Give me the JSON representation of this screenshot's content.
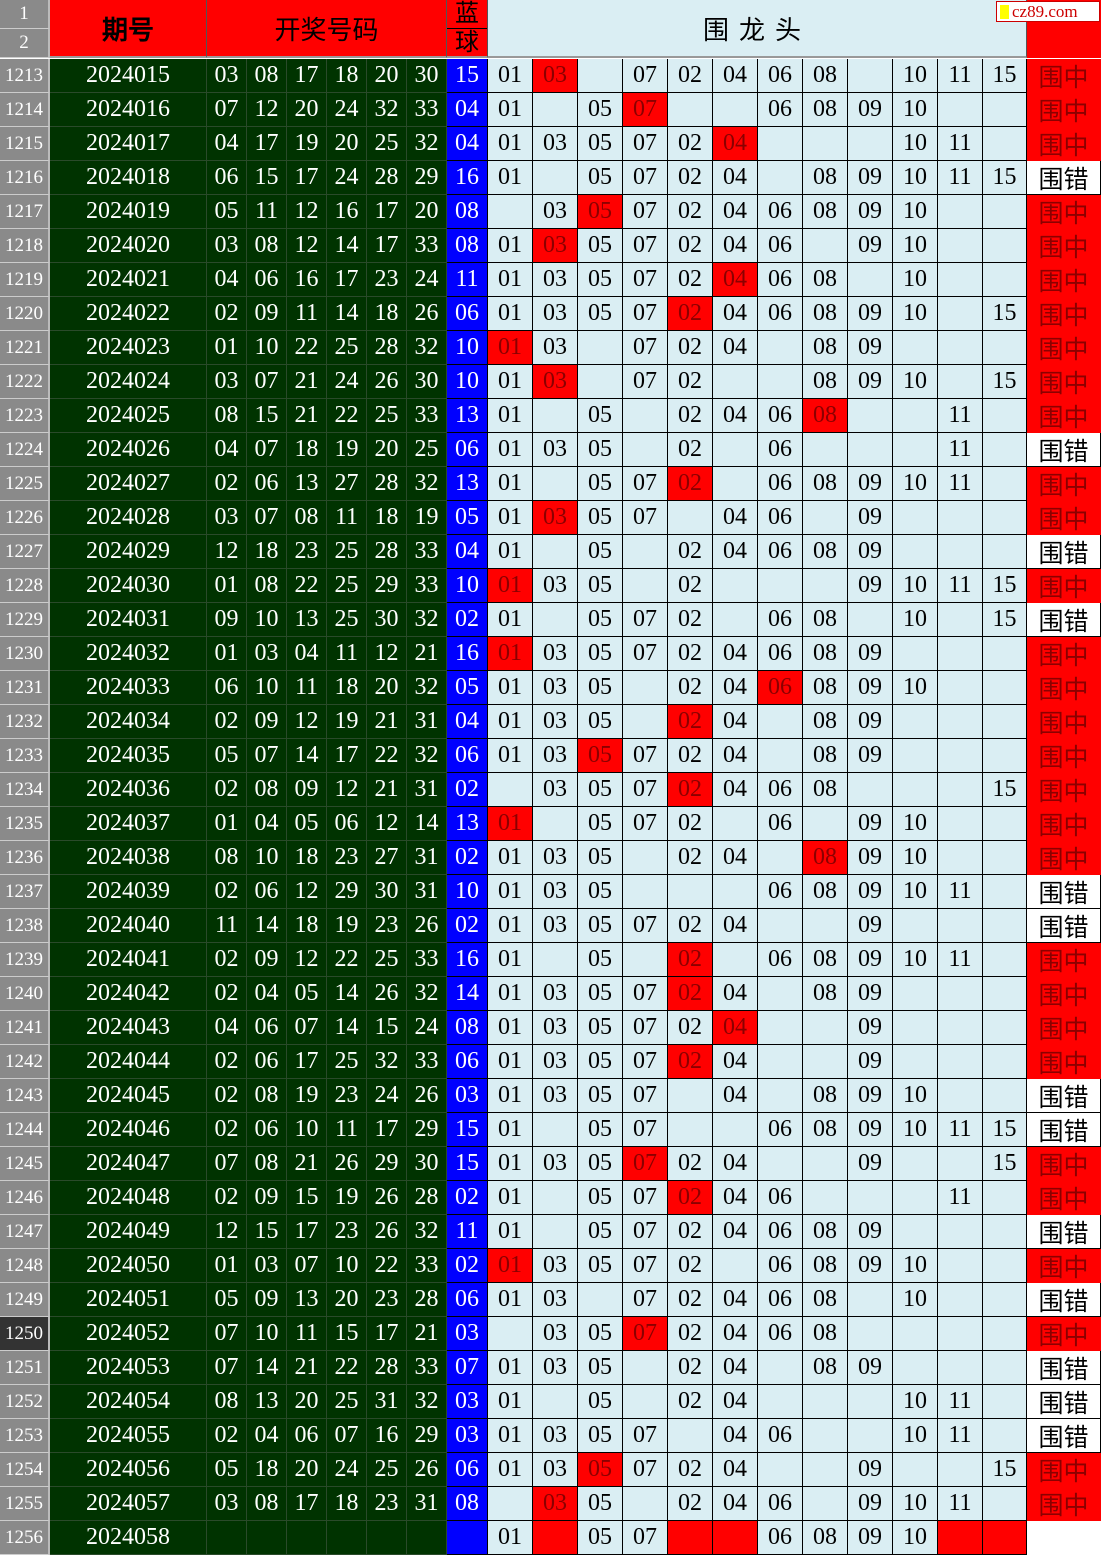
{
  "watermark": "cz89.com",
  "header": {
    "row1": "1",
    "row2": "2",
    "period": "期号",
    "numbers": "开奖号码",
    "blue_top": "蓝",
    "blue_bottom": "球",
    "group": "围龙头"
  },
  "colors": {
    "red": "#ff0000",
    "green": "#003300",
    "blue": "#0000ff",
    "cell": "#daeef3"
  },
  "active_row": "1250",
  "rows": [
    {
      "n": "1213",
      "p": "2024015",
      "nums": [
        "03",
        "08",
        "17",
        "18",
        "20",
        "30"
      ],
      "b": "15",
      "cells": [
        "01",
        "03",
        "",
        "07",
        "02",
        "04",
        "06",
        "08",
        "",
        "10",
        "11",
        "15"
      ],
      "red": [
        1
      ],
      "r": "围中"
    },
    {
      "n": "1214",
      "p": "2024016",
      "nums": [
        "07",
        "12",
        "20",
        "24",
        "32",
        "33"
      ],
      "b": "04",
      "cells": [
        "01",
        "",
        "05",
        "07",
        "",
        "",
        "06",
        "08",
        "09",
        "10",
        "",
        ""
      ],
      "red": [
        3
      ],
      "r": "围中"
    },
    {
      "n": "1215",
      "p": "2024017",
      "nums": [
        "04",
        "17",
        "19",
        "20",
        "25",
        "32"
      ],
      "b": "04",
      "cells": [
        "01",
        "03",
        "05",
        "07",
        "02",
        "04",
        "",
        "",
        "",
        "10",
        "11",
        ""
      ],
      "red": [
        5
      ],
      "r": "围中"
    },
    {
      "n": "1216",
      "p": "2024018",
      "nums": [
        "06",
        "15",
        "17",
        "24",
        "28",
        "29"
      ],
      "b": "16",
      "cells": [
        "01",
        "",
        "05",
        "07",
        "02",
        "04",
        "",
        "08",
        "09",
        "10",
        "11",
        "15"
      ],
      "red": [],
      "r": "围错"
    },
    {
      "n": "1217",
      "p": "2024019",
      "nums": [
        "05",
        "11",
        "12",
        "16",
        "17",
        "20"
      ],
      "b": "08",
      "cells": [
        "",
        "03",
        "05",
        "07",
        "02",
        "04",
        "06",
        "08",
        "09",
        "10",
        "",
        ""
      ],
      "red": [
        2
      ],
      "r": "围中"
    },
    {
      "n": "1218",
      "p": "2024020",
      "nums": [
        "03",
        "08",
        "12",
        "14",
        "17",
        "33"
      ],
      "b": "08",
      "cells": [
        "01",
        "03",
        "05",
        "07",
        "02",
        "04",
        "06",
        "",
        "09",
        "10",
        "",
        ""
      ],
      "red": [
        1
      ],
      "r": "围中"
    },
    {
      "n": "1219",
      "p": "2024021",
      "nums": [
        "04",
        "06",
        "16",
        "17",
        "23",
        "24"
      ],
      "b": "11",
      "cells": [
        "01",
        "03",
        "05",
        "07",
        "02",
        "04",
        "06",
        "08",
        "",
        "10",
        "",
        ""
      ],
      "red": [
        5
      ],
      "r": "围中"
    },
    {
      "n": "1220",
      "p": "2024022",
      "nums": [
        "02",
        "09",
        "11",
        "14",
        "18",
        "26"
      ],
      "b": "06",
      "cells": [
        "01",
        "03",
        "05",
        "07",
        "02",
        "04",
        "06",
        "08",
        "09",
        "10",
        "",
        "15"
      ],
      "red": [
        4
      ],
      "r": "围中"
    },
    {
      "n": "1221",
      "p": "2024023",
      "nums": [
        "01",
        "10",
        "22",
        "25",
        "28",
        "32"
      ],
      "b": "10",
      "cells": [
        "01",
        "03",
        "",
        "07",
        "02",
        "04",
        "",
        "08",
        "09",
        "",
        "",
        ""
      ],
      "red": [
        0
      ],
      "r": "围中"
    },
    {
      "n": "1222",
      "p": "2024024",
      "nums": [
        "03",
        "07",
        "21",
        "24",
        "26",
        "30"
      ],
      "b": "10",
      "cells": [
        "01",
        "03",
        "",
        "07",
        "02",
        "",
        "",
        "08",
        "09",
        "10",
        "",
        "15"
      ],
      "red": [
        1
      ],
      "r": "围中"
    },
    {
      "n": "1223",
      "p": "2024025",
      "nums": [
        "08",
        "15",
        "21",
        "22",
        "25",
        "33"
      ],
      "b": "13",
      "cells": [
        "01",
        "",
        "05",
        "",
        "02",
        "04",
        "06",
        "08",
        "",
        "",
        "11",
        ""
      ],
      "red": [
        7
      ],
      "r": "围中"
    },
    {
      "n": "1224",
      "p": "2024026",
      "nums": [
        "04",
        "07",
        "18",
        "19",
        "20",
        "25"
      ],
      "b": "06",
      "cells": [
        "01",
        "03",
        "05",
        "",
        "02",
        "",
        "06",
        "",
        "",
        "",
        "11",
        ""
      ],
      "red": [],
      "r": "围错"
    },
    {
      "n": "1225",
      "p": "2024027",
      "nums": [
        "02",
        "06",
        "13",
        "27",
        "28",
        "32"
      ],
      "b": "13",
      "cells": [
        "01",
        "",
        "05",
        "07",
        "02",
        "",
        "06",
        "08",
        "09",
        "10",
        "11",
        ""
      ],
      "red": [
        4
      ],
      "r": "围中"
    },
    {
      "n": "1226",
      "p": "2024028",
      "nums": [
        "03",
        "07",
        "08",
        "11",
        "18",
        "19"
      ],
      "b": "05",
      "cells": [
        "01",
        "03",
        "05",
        "07",
        "",
        "04",
        "06",
        "",
        "09",
        "",
        "",
        ""
      ],
      "red": [
        1
      ],
      "r": "围中"
    },
    {
      "n": "1227",
      "p": "2024029",
      "nums": [
        "12",
        "18",
        "23",
        "25",
        "28",
        "33"
      ],
      "b": "04",
      "cells": [
        "01",
        "",
        "05",
        "",
        "02",
        "04",
        "06",
        "08",
        "09",
        "",
        "",
        ""
      ],
      "red": [],
      "r": "围错"
    },
    {
      "n": "1228",
      "p": "2024030",
      "nums": [
        "01",
        "08",
        "22",
        "25",
        "29",
        "33"
      ],
      "b": "10",
      "cells": [
        "01",
        "03",
        "05",
        "",
        "02",
        "",
        "",
        "",
        "09",
        "10",
        "11",
        "15"
      ],
      "red": [
        0
      ],
      "r": "围中"
    },
    {
      "n": "1229",
      "p": "2024031",
      "nums": [
        "09",
        "10",
        "13",
        "25",
        "30",
        "32"
      ],
      "b": "02",
      "cells": [
        "01",
        "",
        "05",
        "07",
        "02",
        "",
        "06",
        "08",
        "",
        "10",
        "",
        "15"
      ],
      "red": [],
      "r": "围错"
    },
    {
      "n": "1230",
      "p": "2024032",
      "nums": [
        "01",
        "03",
        "04",
        "11",
        "12",
        "21"
      ],
      "b": "16",
      "cells": [
        "01",
        "03",
        "05",
        "07",
        "02",
        "04",
        "06",
        "08",
        "09",
        "",
        "",
        ""
      ],
      "red": [
        0
      ],
      "r": "围中"
    },
    {
      "n": "1231",
      "p": "2024033",
      "nums": [
        "06",
        "10",
        "11",
        "18",
        "20",
        "32"
      ],
      "b": "05",
      "cells": [
        "01",
        "03",
        "05",
        "",
        "02",
        "04",
        "06",
        "08",
        "09",
        "10",
        "",
        ""
      ],
      "red": [
        6
      ],
      "r": "围中"
    },
    {
      "n": "1232",
      "p": "2024034",
      "nums": [
        "02",
        "09",
        "12",
        "19",
        "21",
        "31"
      ],
      "b": "04",
      "cells": [
        "01",
        "03",
        "05",
        "",
        "02",
        "04",
        "",
        "08",
        "09",
        "",
        "",
        ""
      ],
      "red": [
        4
      ],
      "r": "围中"
    },
    {
      "n": "1233",
      "p": "2024035",
      "nums": [
        "05",
        "07",
        "14",
        "17",
        "22",
        "32"
      ],
      "b": "06",
      "cells": [
        "01",
        "03",
        "05",
        "07",
        "02",
        "04",
        "",
        "08",
        "09",
        "",
        "",
        ""
      ],
      "red": [
        2
      ],
      "r": "围中"
    },
    {
      "n": "1234",
      "p": "2024036",
      "nums": [
        "02",
        "08",
        "09",
        "12",
        "21",
        "31"
      ],
      "b": "02",
      "cells": [
        "",
        "03",
        "05",
        "07",
        "02",
        "04",
        "06",
        "08",
        "",
        "",
        "",
        "15"
      ],
      "red": [
        4
      ],
      "r": "围中"
    },
    {
      "n": "1235",
      "p": "2024037",
      "nums": [
        "01",
        "04",
        "05",
        "06",
        "12",
        "14"
      ],
      "b": "13",
      "cells": [
        "01",
        "",
        "05",
        "07",
        "02",
        "",
        "06",
        "",
        "09",
        "10",
        "",
        ""
      ],
      "red": [
        0
      ],
      "r": "围中"
    },
    {
      "n": "1236",
      "p": "2024038",
      "nums": [
        "08",
        "10",
        "18",
        "23",
        "27",
        "31"
      ],
      "b": "02",
      "cells": [
        "01",
        "03",
        "05",
        "",
        "02",
        "04",
        "",
        "08",
        "09",
        "10",
        "",
        ""
      ],
      "red": [
        7
      ],
      "r": "围中"
    },
    {
      "n": "1237",
      "p": "2024039",
      "nums": [
        "02",
        "06",
        "12",
        "29",
        "30",
        "31"
      ],
      "b": "10",
      "cells": [
        "01",
        "03",
        "05",
        "",
        "",
        "",
        "06",
        "08",
        "09",
        "10",
        "11",
        ""
      ],
      "red": [],
      "r": "围错"
    },
    {
      "n": "1238",
      "p": "2024040",
      "nums": [
        "11",
        "14",
        "18",
        "19",
        "23",
        "26"
      ],
      "b": "02",
      "cells": [
        "01",
        "03",
        "05",
        "07",
        "02",
        "04",
        "",
        "",
        "09",
        "",
        "",
        ""
      ],
      "red": [],
      "r": "围错"
    },
    {
      "n": "1239",
      "p": "2024041",
      "nums": [
        "02",
        "09",
        "12",
        "22",
        "25",
        "33"
      ],
      "b": "16",
      "cells": [
        "01",
        "",
        "05",
        "",
        "02",
        "",
        "06",
        "08",
        "09",
        "10",
        "11",
        ""
      ],
      "red": [
        4
      ],
      "r": "围中"
    },
    {
      "n": "1240",
      "p": "2024042",
      "nums": [
        "02",
        "04",
        "05",
        "14",
        "26",
        "32"
      ],
      "b": "14",
      "cells": [
        "01",
        "03",
        "05",
        "07",
        "02",
        "04",
        "",
        "08",
        "09",
        "",
        "",
        ""
      ],
      "red": [
        4
      ],
      "r": "围中"
    },
    {
      "n": "1241",
      "p": "2024043",
      "nums": [
        "04",
        "06",
        "07",
        "14",
        "15",
        "24"
      ],
      "b": "08",
      "cells": [
        "01",
        "03",
        "05",
        "07",
        "02",
        "04",
        "",
        "",
        "09",
        "",
        "",
        ""
      ],
      "red": [
        5
      ],
      "r": "围中"
    },
    {
      "n": "1242",
      "p": "2024044",
      "nums": [
        "02",
        "06",
        "17",
        "25",
        "32",
        "33"
      ],
      "b": "06",
      "cells": [
        "01",
        "03",
        "05",
        "07",
        "02",
        "04",
        "",
        "",
        "09",
        "",
        "",
        ""
      ],
      "red": [
        4
      ],
      "r": "围中"
    },
    {
      "n": "1243",
      "p": "2024045",
      "nums": [
        "02",
        "08",
        "19",
        "23",
        "24",
        "26"
      ],
      "b": "03",
      "cells": [
        "01",
        "03",
        "05",
        "07",
        "",
        "04",
        "",
        "08",
        "09",
        "10",
        "",
        ""
      ],
      "red": [],
      "r": "围错"
    },
    {
      "n": "1244",
      "p": "2024046",
      "nums": [
        "02",
        "06",
        "10",
        "11",
        "17",
        "29"
      ],
      "b": "15",
      "cells": [
        "01",
        "",
        "05",
        "07",
        "",
        "",
        "06",
        "08",
        "09",
        "10",
        "11",
        "15"
      ],
      "red": [],
      "r": "围错"
    },
    {
      "n": "1245",
      "p": "2024047",
      "nums": [
        "07",
        "08",
        "21",
        "26",
        "29",
        "30"
      ],
      "b": "15",
      "cells": [
        "01",
        "03",
        "05",
        "07",
        "02",
        "04",
        "",
        "",
        "09",
        "",
        "",
        "15"
      ],
      "red": [
        3
      ],
      "r": "围中"
    },
    {
      "n": "1246",
      "p": "2024048",
      "nums": [
        "02",
        "09",
        "15",
        "19",
        "26",
        "28"
      ],
      "b": "02",
      "cells": [
        "01",
        "",
        "05",
        "07",
        "02",
        "04",
        "06",
        "",
        "",
        "",
        "11",
        ""
      ],
      "red": [
        4
      ],
      "r": "围中"
    },
    {
      "n": "1247",
      "p": "2024049",
      "nums": [
        "12",
        "15",
        "17",
        "23",
        "26",
        "32"
      ],
      "b": "11",
      "cells": [
        "01",
        "",
        "05",
        "07",
        "02",
        "04",
        "06",
        "08",
        "09",
        "",
        "",
        ""
      ],
      "red": [],
      "r": "围错"
    },
    {
      "n": "1248",
      "p": "2024050",
      "nums": [
        "01",
        "03",
        "07",
        "10",
        "22",
        "33"
      ],
      "b": "02",
      "cells": [
        "01",
        "03",
        "05",
        "07",
        "02",
        "",
        "06",
        "08",
        "09",
        "10",
        "",
        ""
      ],
      "red": [
        0
      ],
      "r": "围中"
    },
    {
      "n": "1249",
      "p": "2024051",
      "nums": [
        "05",
        "09",
        "13",
        "20",
        "23",
        "28"
      ],
      "b": "06",
      "cells": [
        "01",
        "03",
        "",
        "07",
        "02",
        "04",
        "06",
        "08",
        "",
        "10",
        "",
        ""
      ],
      "red": [],
      "r": "围错"
    },
    {
      "n": "1250",
      "p": "2024052",
      "nums": [
        "07",
        "10",
        "11",
        "15",
        "17",
        "21"
      ],
      "b": "03",
      "cells": [
        "",
        "03",
        "05",
        "07",
        "02",
        "04",
        "06",
        "08",
        "",
        "",
        "",
        ""
      ],
      "red": [
        3
      ],
      "r": "围中"
    },
    {
      "n": "1251",
      "p": "2024053",
      "nums": [
        "07",
        "14",
        "21",
        "22",
        "28",
        "33"
      ],
      "b": "07",
      "cells": [
        "01",
        "03",
        "05",
        "",
        "02",
        "04",
        "",
        "08",
        "09",
        "",
        "",
        ""
      ],
      "red": [],
      "r": "围错"
    },
    {
      "n": "1252",
      "p": "2024054",
      "nums": [
        "08",
        "13",
        "20",
        "25",
        "31",
        "32"
      ],
      "b": "03",
      "cells": [
        "01",
        "",
        "05",
        "",
        "02",
        "04",
        "",
        "",
        "",
        "10",
        "11",
        ""
      ],
      "red": [],
      "r": "围错"
    },
    {
      "n": "1253",
      "p": "2024055",
      "nums": [
        "02",
        "04",
        "06",
        "07",
        "16",
        "29"
      ],
      "b": "03",
      "cells": [
        "01",
        "03",
        "05",
        "07",
        "",
        "04",
        "06",
        "",
        "",
        "10",
        "11",
        ""
      ],
      "red": [],
      "r": "围错"
    },
    {
      "n": "1254",
      "p": "2024056",
      "nums": [
        "05",
        "18",
        "20",
        "24",
        "25",
        "26"
      ],
      "b": "06",
      "cells": [
        "01",
        "03",
        "05",
        "07",
        "02",
        "04",
        "",
        "",
        "09",
        "",
        "",
        "15"
      ],
      "red": [
        2
      ],
      "r": "围中"
    },
    {
      "n": "1255",
      "p": "2024057",
      "nums": [
        "03",
        "08",
        "17",
        "18",
        "23",
        "31"
      ],
      "b": "08",
      "cells": [
        "",
        "03",
        "05",
        "",
        "02",
        "04",
        "06",
        "",
        "09",
        "10",
        "11",
        ""
      ],
      "red": [
        1
      ],
      "r": "围中"
    },
    {
      "n": "1256",
      "p": "2024058",
      "nums": [
        "",
        "",
        "",
        "",
        "",
        ""
      ],
      "b": "",
      "cells": [
        "01",
        "",
        "05",
        "07",
        "",
        "",
        "06",
        "08",
        "09",
        "10",
        "",
        ""
      ],
      "red": [
        1,
        4,
        5,
        10,
        11
      ],
      "r": ""
    }
  ]
}
